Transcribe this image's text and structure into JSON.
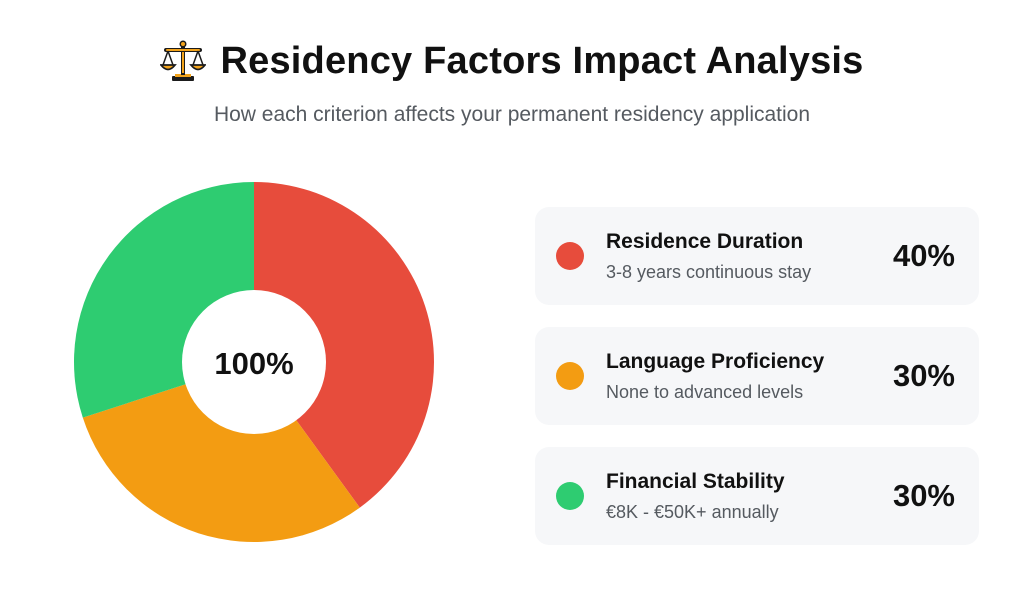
{
  "header": {
    "title": "Residency Factors Impact Analysis",
    "subtitle": "How each criterion affects your permanent residency application",
    "icon": "balance-scale-icon"
  },
  "chart_data": {
    "type": "pie",
    "donut": true,
    "center_label": "100%",
    "start": "top",
    "direction": "clockwise",
    "slices": [
      {
        "label": "Residence Duration",
        "value": 40,
        "color": "#e74c3c"
      },
      {
        "label": "Language Proficiency",
        "value": 30,
        "color": "#f39c12"
      },
      {
        "label": "Financial Stability",
        "value": 30,
        "color": "#2ecc71"
      }
    ]
  },
  "legend": {
    "items": [
      {
        "title": "Residence Duration",
        "description": "3-8 years continuous stay",
        "value": "40%",
        "color": "#e74c3c"
      },
      {
        "title": "Language Proficiency",
        "description": "None to advanced levels",
        "value": "30%",
        "color": "#f39c12"
      },
      {
        "title": "Financial Stability",
        "description": "€8K - €50K+ annually",
        "value": "30%",
        "color": "#2ecc71"
      }
    ]
  }
}
